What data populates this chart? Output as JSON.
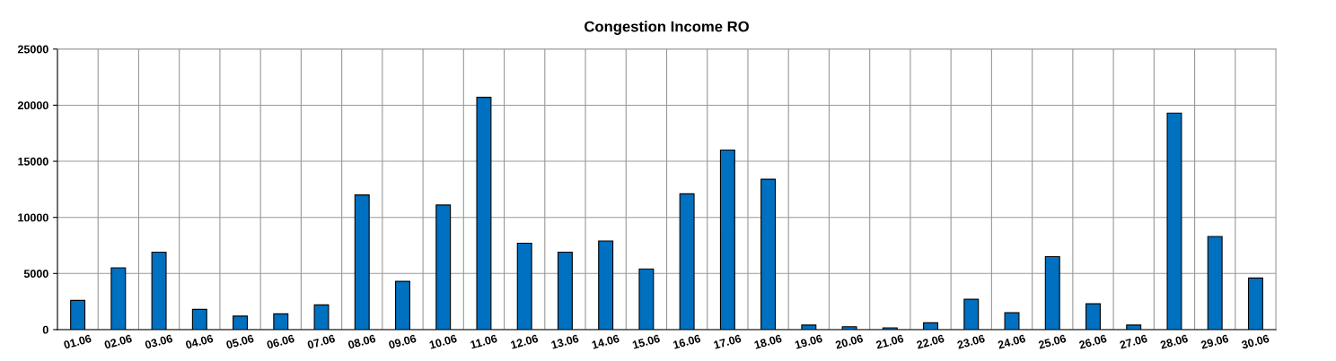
{
  "chart_data": {
    "type": "bar",
    "title": "Congestion Income RO",
    "categories": [
      "01.06",
      "02.06",
      "03.06",
      "04.06",
      "05.06",
      "06.06",
      "07.06",
      "08.06",
      "09.06",
      "10.06",
      "11.06",
      "12.06",
      "13.06",
      "14.06",
      "15.06",
      "16.06",
      "17.06",
      "18.06",
      "19.06",
      "20.06",
      "21.06",
      "22.06",
      "23.06",
      "24.06",
      "25.06",
      "26.06",
      "27.06",
      "28.06",
      "29.06",
      "30.06"
    ],
    "values": [
      2600,
      5500,
      6900,
      1800,
      1200,
      1400,
      2200,
      12000,
      4300,
      11100,
      20700,
      7700,
      6900,
      7900,
      5400,
      12100,
      16000,
      13400,
      400,
      250,
      150,
      600,
      2700,
      1500,
      6500,
      2300,
      400,
      19300,
      8300,
      4600
    ],
    "color": "#0070c0",
    "ylim": [
      0,
      25000
    ],
    "yticks": [
      0,
      5000,
      10000,
      15000,
      20000,
      25000
    ],
    "grid": true,
    "legend": false
  }
}
